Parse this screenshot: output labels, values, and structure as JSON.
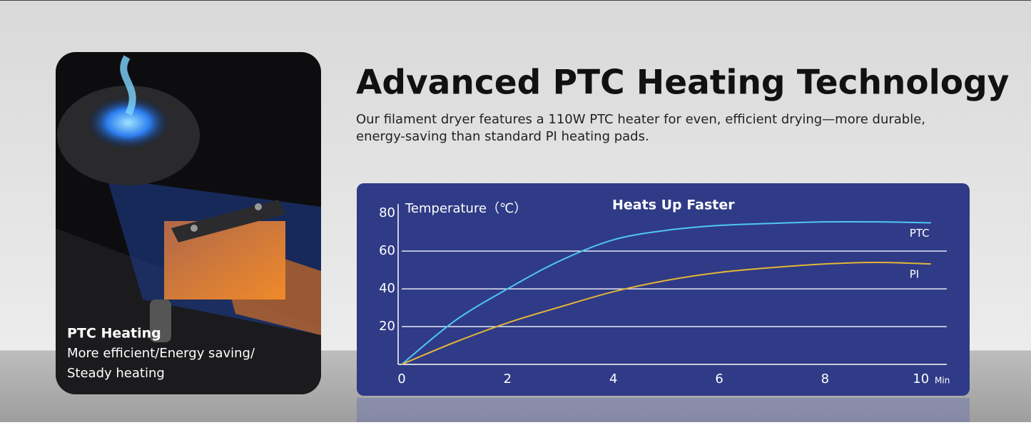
{
  "headline": "Advanced PTC Heating Technology",
  "description": [
    "Our filament dryer features a 110W PTC heater for even, efficient drying—more durable,",
    "energy-saving than standard PI heating pads."
  ],
  "feature_card": {
    "title": "PTC Heating",
    "lines": [
      "More efficient/Energy saving/",
      "Steady heating"
    ]
  },
  "chart_data": {
    "type": "line",
    "title": "Heats Up Faster",
    "y_label": "Temperature（℃）",
    "x_unit": "Min",
    "x": [
      0,
      1,
      2,
      3,
      4,
      5,
      6,
      7,
      8,
      9,
      10
    ],
    "series": [
      {
        "name": "PTC",
        "color": "#4fc6f5",
        "values": [
          0,
          23,
          40,
          55,
          66,
          71,
          73.6,
          74.7,
          75.5,
          75.5,
          75
        ]
      },
      {
        "name": "PI",
        "color": "#e2b53a",
        "values": [
          0,
          11.7,
          22,
          30.5,
          38.5,
          44.5,
          48.7,
          51.3,
          53.2,
          54,
          53.2
        ]
      }
    ],
    "xlim": [
      0,
      10.3
    ],
    "ylim": [
      0,
      85
    ],
    "xticks": [
      0,
      2,
      4,
      6,
      8,
      10
    ],
    "yticks": [
      20,
      40,
      60,
      80
    ],
    "grid": true
  }
}
